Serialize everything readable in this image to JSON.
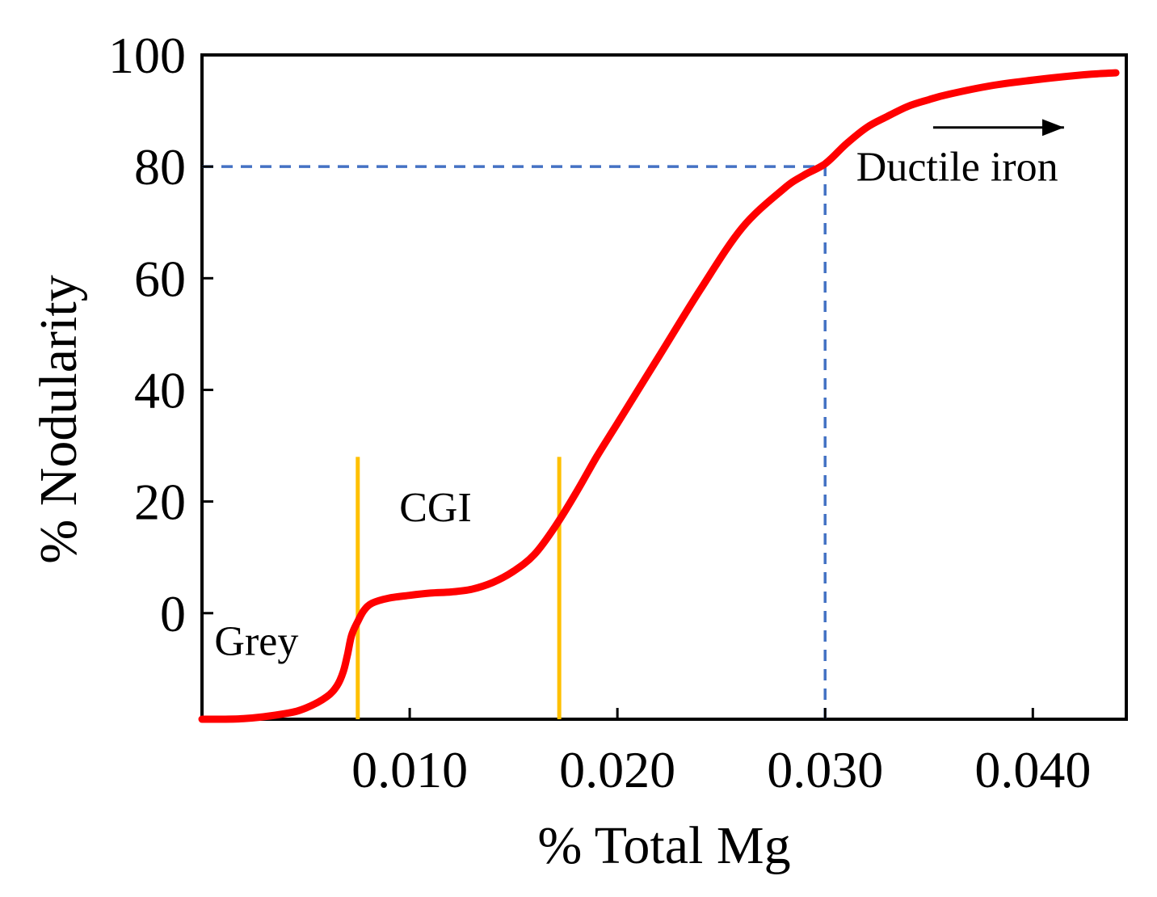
{
  "chart_data": {
    "type": "line",
    "title": "",
    "xlabel": "% Total Mg",
    "ylabel": "% Nodularity",
    "xlim": [
      0.0,
      0.0445
    ],
    "ylim": [
      -19,
      100
    ],
    "xticks": [
      0.01,
      0.02,
      0.03,
      0.04
    ],
    "xtick_labels": [
      "0.010",
      "0.020",
      "0.030",
      "0.040"
    ],
    "yticks": [
      0,
      20,
      40,
      60,
      80,
      100
    ],
    "ytick_labels": [
      "0",
      "20",
      "40",
      "60",
      "80",
      "100"
    ],
    "grid": false,
    "series": [
      {
        "name": "Nodularity curve",
        "color": "#ff0000",
        "x": [
          0.0,
          0.002,
          0.004,
          0.005,
          0.006,
          0.0065,
          0.0068,
          0.007,
          0.0072,
          0.0075,
          0.0078,
          0.0082,
          0.009,
          0.01,
          0.011,
          0.012,
          0.013,
          0.014,
          0.015,
          0.016,
          0.017,
          0.018,
          0.019,
          0.02,
          0.022,
          0.024,
          0.026,
          0.028,
          0.029,
          0.03,
          0.031,
          0.032,
          0.033,
          0.034,
          0.035,
          0.036,
          0.038,
          0.04,
          0.042,
          0.043,
          0.044
        ],
        "y": [
          -19,
          -18.9,
          -18,
          -17,
          -15,
          -13,
          -10.5,
          -7.5,
          -4,
          -1.5,
          0.5,
          1.8,
          2.7,
          3.2,
          3.6,
          3.8,
          4.3,
          5.5,
          7.5,
          10.5,
          15.5,
          21.5,
          28,
          34,
          46,
          58,
          69,
          76,
          78.5,
          80.5,
          84,
          87,
          89,
          90.8,
          92,
          93,
          94.5,
          95.5,
          96.3,
          96.6,
          96.8
        ]
      }
    ],
    "reference_lines": [
      {
        "kind": "horizontal-dashed",
        "y": 80,
        "x_from": 0.0,
        "x_to": 0.03,
        "color": "#4472c4"
      },
      {
        "kind": "vertical-dashed",
        "x": 0.03,
        "y_from": -19,
        "y_to": 80,
        "color": "#4472c4"
      },
      {
        "kind": "vertical-boundary",
        "x": 0.0075,
        "y_from": -19,
        "y_to": 28,
        "color": "#ffc000"
      },
      {
        "kind": "vertical-boundary",
        "x": 0.0172,
        "y_from": -19,
        "y_to": 28,
        "color": "#ffc000"
      }
    ],
    "annotations": [
      {
        "text": "Grey",
        "x": 0.0006,
        "y": -7.5
      },
      {
        "text": "CGI",
        "x": 0.0095,
        "y": 16.5
      },
      {
        "text": "Ductile iron",
        "x": 0.0315,
        "y": 77.5
      }
    ],
    "arrow": {
      "x_from": 0.0352,
      "x_to": 0.0415,
      "y": 87,
      "color": "#000000"
    }
  }
}
